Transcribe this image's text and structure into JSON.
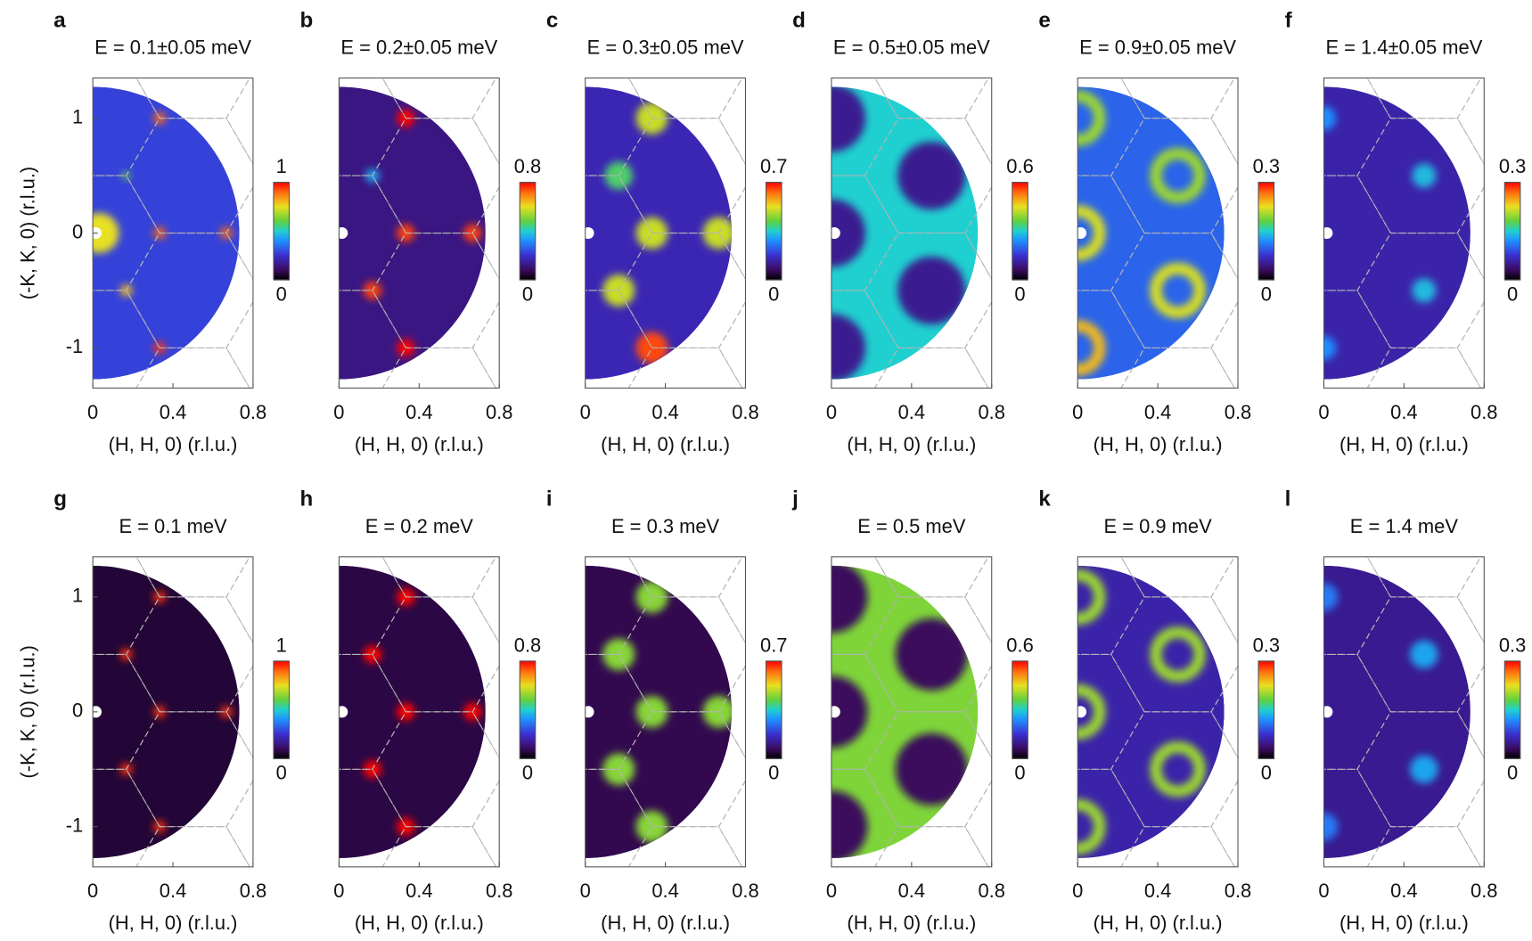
{
  "chart_data": [
    {
      "type": "heatmap",
      "label": "a",
      "title": "E = 0.1±0.05 meV",
      "xlabel": "(H, H, 0) (r.l.u.)",
      "ylabel": "(-K, K, 0) (r.l.u.)",
      "xlim": [
        0,
        0.8
      ],
      "xticks": [
        0,
        0.4,
        0.8
      ],
      "ylim": [
        -1.35,
        1.35
      ],
      "yticks": [
        -1,
        0,
        1
      ],
      "clim": [
        0,
        1
      ],
      "cticks": [
        0,
        1
      ],
      "background": 0.28,
      "spots": [
        {
          "x": 0.333,
          "y": 1,
          "r": 0.03,
          "value": 0.9
        },
        {
          "x": 0.167,
          "y": 0.5,
          "r": 0.02,
          "value": 0.6
        },
        {
          "x": 0.333,
          "y": 0,
          "r": 0.03,
          "value": 0.9
        },
        {
          "x": 0.667,
          "y": 0,
          "r": 0.03,
          "value": 0.9
        },
        {
          "x": 0.167,
          "y": -0.5,
          "r": 0.03,
          "value": 0.8
        },
        {
          "x": 0.333,
          "y": -1,
          "r": 0.03,
          "value": 0.95
        },
        {
          "x": 0.03,
          "y": 0,
          "r": 0.1,
          "value": 0.75
        }
      ],
      "rings": []
    },
    {
      "type": "heatmap",
      "label": "b",
      "title": "E = 0.2±0.05 meV",
      "xlabel": "(H, H, 0) (r.l.u.)",
      "xlim": [
        0,
        0.8
      ],
      "xticks": [
        0,
        0.4,
        0.8
      ],
      "ylim": [
        -1.35,
        1.35
      ],
      "clim": [
        0,
        0.8
      ],
      "cticks": [
        0,
        0.8
      ],
      "background": 0.12,
      "spots": [
        {
          "x": 0.333,
          "y": 1,
          "r": 0.045,
          "value": 0.8
        },
        {
          "x": 0.167,
          "y": 0.5,
          "r": 0.035,
          "value": 0.35
        },
        {
          "x": 0.333,
          "y": 0,
          "r": 0.045,
          "value": 0.75
        },
        {
          "x": 0.667,
          "y": 0,
          "r": 0.045,
          "value": 0.75
        },
        {
          "x": 0.167,
          "y": -0.5,
          "r": 0.045,
          "value": 0.75
        },
        {
          "x": 0.333,
          "y": -1,
          "r": 0.045,
          "value": 0.8
        }
      ],
      "rings": []
    },
    {
      "type": "heatmap",
      "label": "c",
      "title": "E = 0.3±0.05 meV",
      "xlabel": "(H, H, 0) (r.l.u.)",
      "xlim": [
        0,
        0.8
      ],
      "xticks": [
        0,
        0.4,
        0.8
      ],
      "ylim": [
        -1.35,
        1.35
      ],
      "clim": [
        0,
        0.7
      ],
      "cticks": [
        0,
        0.7
      ],
      "background": 0.15,
      "spots": [
        {
          "x": 0.333,
          "y": 1,
          "r": 0.08,
          "value": 0.5
        },
        {
          "x": 0.167,
          "y": 0.5,
          "r": 0.07,
          "value": 0.4
        },
        {
          "x": 0.333,
          "y": 0,
          "r": 0.08,
          "value": 0.5
        },
        {
          "x": 0.667,
          "y": 0,
          "r": 0.08,
          "value": 0.5
        },
        {
          "x": 0.167,
          "y": -0.5,
          "r": 0.08,
          "value": 0.5
        },
        {
          "x": 0.333,
          "y": -1,
          "r": 0.08,
          "value": 0.65
        }
      ],
      "rings": []
    },
    {
      "type": "heatmap",
      "label": "d",
      "title": "E = 0.5±0.05 meV",
      "xlabel": "(H, H, 0) (r.l.u.)",
      "xlim": [
        0,
        0.8
      ],
      "xticks": [
        0,
        0.4,
        0.8
      ],
      "ylim": [
        -1.35,
        1.35
      ],
      "clim": [
        0,
        0.6
      ],
      "cticks": [
        0,
        0.6
      ],
      "background": 0.3,
      "spots": [
        {
          "x": 0,
          "y": 0,
          "r": 0.17,
          "value": 0.1
        },
        {
          "x": 0.5,
          "y": 0.5,
          "r": 0.17,
          "value": 0.1
        },
        {
          "x": 0.5,
          "y": -0.5,
          "r": 0.17,
          "value": 0.1
        },
        {
          "x": 0,
          "y": 1,
          "r": 0.17,
          "value": 0.1
        },
        {
          "x": 0,
          "y": -1,
          "r": 0.17,
          "value": 0.1
        }
      ],
      "rings": []
    },
    {
      "type": "heatmap",
      "label": "e",
      "title": "E = 0.9±0.05 meV",
      "xlabel": "(H, H, 0) (r.l.u.)",
      "xlim": [
        0,
        0.8
      ],
      "xticks": [
        0,
        0.4,
        0.8
      ],
      "ylim": [
        -1.35,
        1.35
      ],
      "clim": [
        0,
        0.3
      ],
      "cticks": [
        0,
        0.3
      ],
      "background": 0.1,
      "spots": [],
      "rings": [
        {
          "x": 0,
          "y": 0,
          "r": 0.11,
          "value": 0.22
        },
        {
          "x": 0.5,
          "y": 0.5,
          "r": 0.11,
          "value": 0.2
        },
        {
          "x": 0.5,
          "y": -0.5,
          "r": 0.11,
          "value": 0.22
        },
        {
          "x": 0,
          "y": 1,
          "r": 0.11,
          "value": 0.2
        },
        {
          "x": 0,
          "y": -1,
          "r": 0.11,
          "value": 0.24
        }
      ]
    },
    {
      "type": "heatmap",
      "label": "f",
      "title": "E = 1.4±0.05 meV",
      "xlabel": "(H, H, 0) (r.l.u.)",
      "xlim": [
        0,
        0.8
      ],
      "xticks": [
        0,
        0.4,
        0.8
      ],
      "ylim": [
        -1.35,
        1.35
      ],
      "clim": [
        0,
        0.3
      ],
      "cticks": [
        0,
        0.3
      ],
      "background": 0.06,
      "spots": [
        {
          "x": 0.5,
          "y": 0.5,
          "r": 0.06,
          "value": 0.14
        },
        {
          "x": 0.5,
          "y": -0.5,
          "r": 0.06,
          "value": 0.14
        },
        {
          "x": 0,
          "y": 1,
          "r": 0.06,
          "value": 0.12
        },
        {
          "x": 0,
          "y": -1,
          "r": 0.06,
          "value": 0.12
        }
      ],
      "rings": []
    },
    {
      "type": "heatmap",
      "label": "g",
      "title": "E = 0.1 meV",
      "xlabel": "(H, H, 0) (r.l.u.)",
      "ylabel": "(-K, K, 0) (r.l.u.)",
      "xlim": [
        0,
        0.8
      ],
      "xticks": [
        0,
        0.4,
        0.8
      ],
      "ylim": [
        -1.35,
        1.35
      ],
      "yticks": [
        -1,
        0,
        1
      ],
      "clim": [
        0,
        1
      ],
      "cticks": [
        0,
        1
      ],
      "background": 0.06,
      "spots": [
        {
          "x": 0.333,
          "y": 1,
          "r": 0.03,
          "value": 0.95
        },
        {
          "x": 0.167,
          "y": 0.5,
          "r": 0.03,
          "value": 0.95
        },
        {
          "x": 0.333,
          "y": 0,
          "r": 0.03,
          "value": 0.95
        },
        {
          "x": 0.667,
          "y": 0,
          "r": 0.03,
          "value": 0.95
        },
        {
          "x": 0.167,
          "y": -0.5,
          "r": 0.03,
          "value": 0.95
        },
        {
          "x": 0.333,
          "y": -1,
          "r": 0.03,
          "value": 0.95
        }
      ],
      "rings": []
    },
    {
      "type": "heatmap",
      "label": "h",
      "title": "E = 0.2 meV",
      "xlabel": "(H, H, 0) (r.l.u.)",
      "xlim": [
        0,
        0.8
      ],
      "xticks": [
        0,
        0.4,
        0.8
      ],
      "ylim": [
        -1.35,
        1.35
      ],
      "clim": [
        0,
        0.8
      ],
      "cticks": [
        0,
        0.8
      ],
      "background": 0.06,
      "spots": [
        {
          "x": 0.333,
          "y": 1,
          "r": 0.045,
          "value": 0.8
        },
        {
          "x": 0.167,
          "y": 0.5,
          "r": 0.045,
          "value": 0.8
        },
        {
          "x": 0.333,
          "y": 0,
          "r": 0.045,
          "value": 0.8
        },
        {
          "x": 0.667,
          "y": 0,
          "r": 0.045,
          "value": 0.8
        },
        {
          "x": 0.167,
          "y": -0.5,
          "r": 0.045,
          "value": 0.8
        },
        {
          "x": 0.333,
          "y": -1,
          "r": 0.045,
          "value": 0.8
        }
      ],
      "rings": []
    },
    {
      "type": "heatmap",
      "label": "i",
      "title": "E = 0.3 meV",
      "xlabel": "(H, H, 0) (r.l.u.)",
      "xlim": [
        0,
        0.8
      ],
      "xticks": [
        0,
        0.4,
        0.8
      ],
      "ylim": [
        -1.35,
        1.35
      ],
      "clim": [
        0,
        0.7
      ],
      "cticks": [
        0,
        0.7
      ],
      "background": 0.06,
      "spots": [
        {
          "x": 0.333,
          "y": 1,
          "r": 0.08,
          "value": 0.45
        },
        {
          "x": 0.167,
          "y": 0.5,
          "r": 0.08,
          "value": 0.45
        },
        {
          "x": 0.333,
          "y": 0,
          "r": 0.08,
          "value": 0.45
        },
        {
          "x": 0.667,
          "y": 0,
          "r": 0.08,
          "value": 0.45
        },
        {
          "x": 0.167,
          "y": -0.5,
          "r": 0.08,
          "value": 0.45
        },
        {
          "x": 0.333,
          "y": -1,
          "r": 0.08,
          "value": 0.45
        }
      ],
      "rings": []
    },
    {
      "type": "heatmap",
      "label": "j",
      "title": "E = 0.5 meV",
      "xlabel": "(H, H, 0) (r.l.u.)",
      "xlim": [
        0,
        0.8
      ],
      "xticks": [
        0,
        0.4,
        0.8
      ],
      "ylim": [
        -1.35,
        1.35
      ],
      "clim": [
        0,
        0.6
      ],
      "cticks": [
        0,
        0.6
      ],
      "background": 0.38,
      "spots": [
        {
          "x": 0,
          "y": 0,
          "r": 0.18,
          "value": 0.06
        },
        {
          "x": 0.5,
          "y": 0.5,
          "r": 0.18,
          "value": 0.06
        },
        {
          "x": 0.5,
          "y": -0.5,
          "r": 0.18,
          "value": 0.06
        },
        {
          "x": 0,
          "y": 1,
          "r": 0.18,
          "value": 0.06
        },
        {
          "x": 0,
          "y": -1,
          "r": 0.18,
          "value": 0.06
        }
      ],
      "rings": []
    },
    {
      "type": "heatmap",
      "label": "k",
      "title": "E = 0.9 meV",
      "xlabel": "(H, H, 0) (r.l.u.)",
      "xlim": [
        0,
        0.8
      ],
      "xticks": [
        0,
        0.4,
        0.8
      ],
      "ylim": [
        -1.35,
        1.35
      ],
      "clim": [
        0,
        0.3
      ],
      "cticks": [
        0,
        0.3
      ],
      "background": 0.06,
      "spots": [],
      "rings": [
        {
          "x": 0,
          "y": 0,
          "r": 0.11,
          "value": 0.2
        },
        {
          "x": 0.5,
          "y": 0.5,
          "r": 0.11,
          "value": 0.2
        },
        {
          "x": 0.5,
          "y": -0.5,
          "r": 0.11,
          "value": 0.2
        },
        {
          "x": 0,
          "y": 1,
          "r": 0.11,
          "value": 0.2
        },
        {
          "x": 0,
          "y": -1,
          "r": 0.11,
          "value": 0.2
        }
      ]
    },
    {
      "type": "heatmap",
      "label": "l",
      "title": "E = 1.4 meV",
      "xlabel": "(H, H, 0) (r.l.u.)",
      "xlim": [
        0,
        0.8
      ],
      "xticks": [
        0,
        0.4,
        0.8
      ],
      "ylim": [
        -1.35,
        1.35
      ],
      "clim": [
        0,
        0.3
      ],
      "cticks": [
        0,
        0.3
      ],
      "background": 0.05,
      "spots": [
        {
          "x": 0.5,
          "y": 0.5,
          "r": 0.07,
          "value": 0.13
        },
        {
          "x": 0.5,
          "y": -0.5,
          "r": 0.07,
          "value": 0.13
        },
        {
          "x": 0,
          "y": 1,
          "r": 0.07,
          "value": 0.11
        },
        {
          "x": 0,
          "y": -1,
          "r": 0.07,
          "value": 0.11
        }
      ],
      "rings": []
    }
  ]
}
